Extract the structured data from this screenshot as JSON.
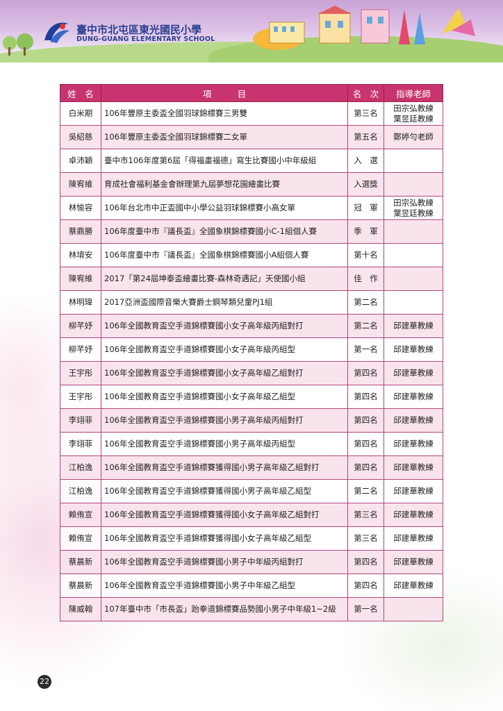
{
  "header": {
    "school_name_zh": "臺中市北屯區東光國民小學",
    "school_name_en": "DUNG-GUANG ELEMENTARY SCHOOL"
  },
  "table": {
    "headers": {
      "name": "姓　名",
      "event": "項　　　目",
      "rank": "名　次",
      "teacher": "指導老師"
    },
    "rows": [
      {
        "name": "白米期",
        "event": "106年豐原主委盃全國羽球錦標賽三男雙",
        "rank": "第三名",
        "teacher": "田宗弘教練\n葉昱廷教練"
      },
      {
        "name": "吳紹慈",
        "event": "106年豐原主委盃全國羽球錦標賽二女單",
        "rank": "第五名",
        "teacher": "鄭婷勻老師"
      },
      {
        "name": "卓沛穎",
        "event": "臺中市106年度第6屆「得福畫福德」寫生比賽國小中年級組",
        "rank": "入　選",
        "teacher": ""
      },
      {
        "name": "陳宥維",
        "event": "育成社會福利基金會辦理第九屆夢想花園繪畫比賽",
        "rank": "入選獎",
        "teacher": ""
      },
      {
        "name": "林愉容",
        "event": "106年台北市中正盃國中小學公益羽球錦標賽小高女單",
        "rank": "冠　軍",
        "teacher": "田宗弘教練\n葉昱廷教練"
      },
      {
        "name": "蔡鼎勝",
        "event": "106年度臺中市『議長盃』全國象棋錦標賽國小C-1組個人賽",
        "rank": "季　軍",
        "teacher": ""
      },
      {
        "name": "林堉安",
        "event": "106年度臺中市『議長盃』全國象棋錦標賽國小A組個人賽",
        "rank": "第十名",
        "teacher": ""
      },
      {
        "name": "陳宥維",
        "event": "2017「第24屆坤泰盃繪畫比賽-森林奇遇記」天使國小組",
        "rank": "佳　作",
        "teacher": ""
      },
      {
        "name": "林明瑋",
        "event": "2017亞洲盃國際音樂大賽爵士鋼琴類兒童PJ1組",
        "rank": "第二名",
        "teacher": ""
      },
      {
        "name": "柳芊妤",
        "event": "106年全國教育盃空手道錦標賽國小女子高年級丙組對打",
        "rank": "第二名",
        "teacher": "邱建華教練"
      },
      {
        "name": "柳芊妤",
        "event": "106年全國教育盃空手道錦標賽國小女子高年級丙組型",
        "rank": "第一名",
        "teacher": "邱建華教練"
      },
      {
        "name": "王宇彤",
        "event": "106年全國教育盃空手道錦標賽國小女子高年級乙組對打",
        "rank": "第四名",
        "teacher": "邱建華教練"
      },
      {
        "name": "王宇彤",
        "event": "106年全國教育盃空手道錦標賽國小女子高年級乙組型",
        "rank": "第四名",
        "teacher": "邱建華教練"
      },
      {
        "name": "李翊菲",
        "event": "106年全國教育盃空手道錦標賽國小男子高年級丙組對打",
        "rank": "第四名",
        "teacher": "邱建華教練"
      },
      {
        "name": "李翊菲",
        "event": "106年全國教育盃空手道錦標賽國小男子高年級丙組型",
        "rank": "第四名",
        "teacher": "邱建華教練"
      },
      {
        "name": "江柏逸",
        "event": "106年全國教育盃空手道錦標賽獲得國小男子高年級乙組對打",
        "rank": "第四名",
        "teacher": "邱建華教練"
      },
      {
        "name": "江柏逸",
        "event": "106年全國教育盃空手道錦標賽獲得國小男子高年級乙組型",
        "rank": "第二名",
        "teacher": "邱建華教練"
      },
      {
        "name": "賴侑宣",
        "event": "106年全國教育盃空手道錦標賽獲得國小女子高年級乙組對打",
        "rank": "第三名",
        "teacher": "邱建華教練"
      },
      {
        "name": "賴侑宣",
        "event": "106年全國教育盃空手道錦標賽獲得國小女子高年級乙組型",
        "rank": "第三名",
        "teacher": "邱建華教練"
      },
      {
        "name": "蔡晨新",
        "event": "106年全國教育盃空手道錦標賽國小男子中年級丙組對打",
        "rank": "第四名",
        "teacher": "邱建華教練"
      },
      {
        "name": "蔡晨新",
        "event": "106年全國教育盃空手道錦標賽國小男子中年級乙組型",
        "rank": "第四名",
        "teacher": "邱建華教練"
      },
      {
        "name": "陳威翰",
        "event": "107年臺中市「市長盃」跆拳道錦標賽品勢國小男子中年級1~2級",
        "rank": "第一名",
        "teacher": ""
      }
    ]
  },
  "page_number": "22"
}
